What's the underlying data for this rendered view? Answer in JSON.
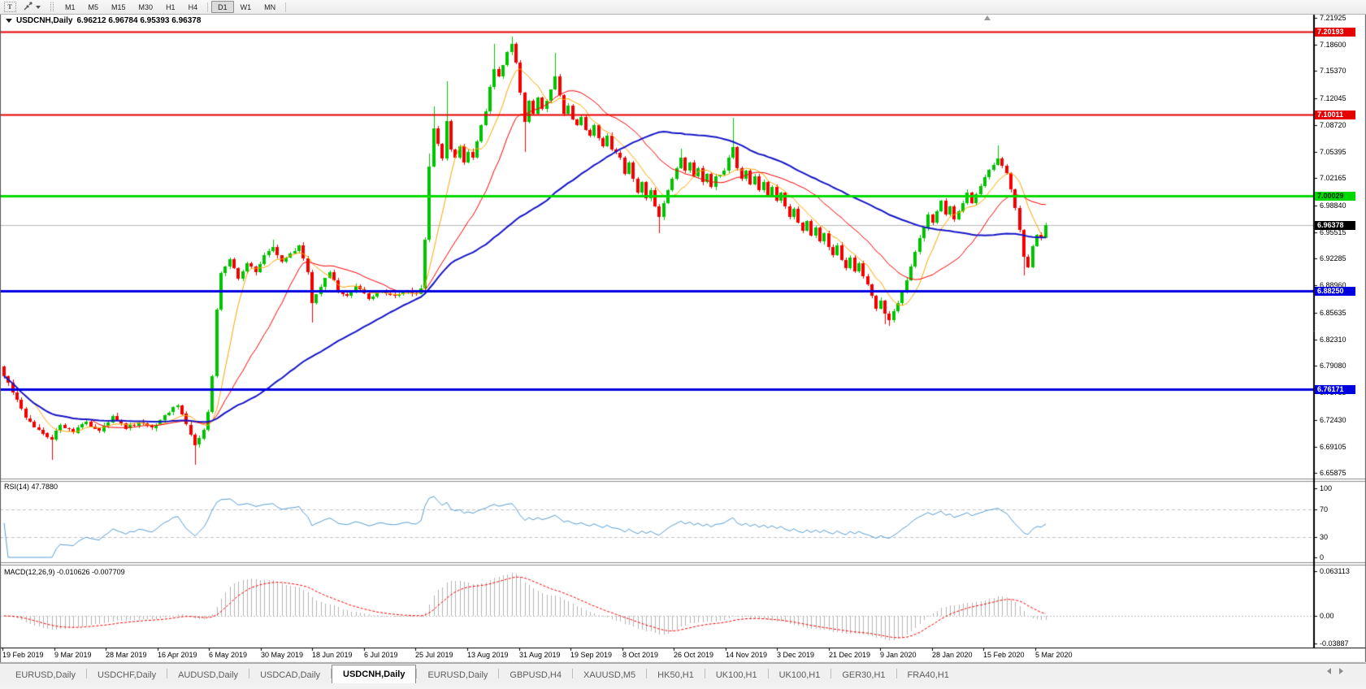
{
  "toolbar": {
    "text_tool_glyph": "T",
    "timeframes": [
      "M1",
      "M5",
      "M15",
      "M30",
      "H1",
      "H4",
      "D1",
      "W1",
      "MN"
    ],
    "active_timeframe": "D1"
  },
  "chart_header": {
    "symbol_title": "USDCNH,Daily",
    "ohlc_text": "6.96212 6.96784 6.95393 6.96378"
  },
  "price_axis": {
    "ticks": [
      "7.21925",
      "7.18600",
      "7.15370",
      "7.12045",
      "7.08720",
      "7.05395",
      "7.02165",
      "6.98840",
      "6.95515",
      "6.92285",
      "6.88960",
      "6.85635",
      "6.82310",
      "6.79080",
      "6.75755",
      "6.72430",
      "6.69105",
      "6.65875"
    ],
    "current_price_label": "6.96378"
  },
  "level_labels": [
    {
      "text": "7.20193",
      "bg": "#e60000",
      "fg": "#ffffff"
    },
    {
      "text": "7.10011",
      "bg": "#e60000",
      "fg": "#ffffff"
    },
    {
      "text": "7.00029",
      "bg": "#00d900",
      "fg": "#002900"
    },
    {
      "text": "6.88250",
      "bg": "#0000e0",
      "fg": "#ffffff"
    },
    {
      "text": "6.76171",
      "bg": "#0000e0",
      "fg": "#ffffff"
    }
  ],
  "rsi_panel": {
    "label": "RSI(14) 47.7880",
    "scale": [
      "100",
      "70",
      "30",
      "0"
    ]
  },
  "macd_panel": {
    "label": "MACD(12,26,9) -0.010626 -0.007709",
    "scale": [
      "0.063113",
      "0.00",
      "-0.03887"
    ]
  },
  "time_axis": [
    "19 Feb 2019",
    "9 Mar 2019",
    "28 Mar 2019",
    "16 Apr 2019",
    "6 May 2019",
    "30 May 2019",
    "18 Jun 2019",
    "6 Jul 2019",
    "25 Jul 2019",
    "13 Aug 2019",
    "31 Aug 2019",
    "19 Sep 2019",
    "8 Oct 2019",
    "26 Oct 2019",
    "14 Nov 2019",
    "3 Dec 2019",
    "21 Dec 2019",
    "9 Jan 2020",
    "28 Jan 2020",
    "15 Feb 2020",
    "5 Mar 2020"
  ],
  "tabs": {
    "items": [
      "EURUSD,Daily",
      "USDCHF,Daily",
      "AUDUSD,Daily",
      "USDCAD,Daily",
      "USDCNH,Daily",
      "EURUSD,Daily",
      "GBPUSD,H4",
      "XAUUSD,M5",
      "HK50,H1",
      "UK100,H1",
      "UK100,H1",
      "GER30,H1",
      "FRA40,H1"
    ],
    "active_index": 4
  },
  "chart_data": {
    "type": "candlestick",
    "symbol": "USDCNH",
    "timeframe": "Daily",
    "x_range": [
      "19 Feb 2019",
      "5 Mar 2020"
    ],
    "bar_count": 241,
    "current_bar": {
      "open": 6.96212,
      "high": 6.96784,
      "low": 6.95393,
      "close": 6.96378
    },
    "current_price": 6.96378,
    "price_at_top": 7.22325,
    "price_at_bottom": 6.65273,
    "colors": {
      "bull": "#00c400",
      "bear": "#f40000",
      "ma_fast": "#ffa500",
      "ma_mid": "#ff0000",
      "ma_slow": "#1616c8",
      "rsi_line": "#5a9fd6",
      "macd_hist": "#b4b4b4",
      "macd_signal": "#ff0000",
      "current_price_line": "#b8b8b8",
      "level_dash": "#c2c2c2"
    },
    "horizontal_lines": [
      {
        "price": 7.20193,
        "color": "#e60000",
        "width": 2
      },
      {
        "price": 7.10011,
        "color": "#e60000",
        "width": 2
      },
      {
        "price": 7.00029,
        "color": "#00d900",
        "width": 3
      },
      {
        "price": 6.8825,
        "color": "#0000e0",
        "width": 3
      },
      {
        "price": 6.76171,
        "color": "#0000e0",
        "width": 3
      }
    ],
    "moving_averages": [
      {
        "period": 8,
        "color": "#ffa500",
        "width": 1
      },
      {
        "period": 21,
        "color": "#ff0000",
        "width": 1
      },
      {
        "period": 55,
        "color": "#1616c8",
        "width": 2
      }
    ],
    "indicators": {
      "rsi": {
        "period": 14,
        "value": 47.788,
        "range": [
          0,
          100
        ],
        "levels": [
          70,
          30
        ]
      },
      "macd": {
        "fast": 12,
        "slow": 26,
        "signal": 9,
        "main_value": -0.010626,
        "signal_value": -0.007709,
        "scale_top": 0.063113,
        "scale_bottom": -0.03887
      }
    },
    "close_waypoints": [
      [
        0,
        6.778
      ],
      [
        2,
        6.758
      ],
      [
        5,
        6.726
      ],
      [
        8,
        6.712
      ],
      [
        11,
        6.7
      ],
      [
        13,
        6.718
      ],
      [
        16,
        6.708
      ],
      [
        19,
        6.722
      ],
      [
        22,
        6.71
      ],
      [
        25,
        6.729
      ],
      [
        28,
        6.713
      ],
      [
        31,
        6.721
      ],
      [
        34,
        6.714
      ],
      [
        37,
        6.73
      ],
      [
        40,
        6.742
      ],
      [
        42,
        6.718
      ],
      [
        44,
        6.693
      ],
      [
        46,
        6.712
      ],
      [
        47,
        6.734
      ],
      [
        48,
        6.778
      ],
      [
        49,
        6.86
      ],
      [
        50,
        6.905
      ],
      [
        52,
        6.922
      ],
      [
        54,
        6.898
      ],
      [
        56,
        6.917
      ],
      [
        58,
        6.906
      ],
      [
        60,
        6.927
      ],
      [
        62,
        6.937
      ],
      [
        64,
        6.919
      ],
      [
        66,
        6.929
      ],
      [
        68,
        6.939
      ],
      [
        70,
        6.906
      ],
      [
        71,
        6.868
      ],
      [
        73,
        6.888
      ],
      [
        75,
        6.906
      ],
      [
        77,
        6.883
      ],
      [
        79,
        6.877
      ],
      [
        81,
        6.889
      ],
      [
        84,
        6.873
      ],
      [
        87,
        6.883
      ],
      [
        90,
        6.877
      ],
      [
        93,
        6.883
      ],
      [
        95,
        6.879
      ],
      [
        96,
        6.886
      ],
      [
        97,
        6.946
      ],
      [
        98,
        7.036
      ],
      [
        99,
        7.083
      ],
      [
        100,
        7.064
      ],
      [
        101,
        7.046
      ],
      [
        102,
        7.092
      ],
      [
        103,
        7.057
      ],
      [
        104,
        7.047
      ],
      [
        105,
        7.061
      ],
      [
        106,
        7.041
      ],
      [
        107,
        7.054
      ],
      [
        108,
        7.047
      ],
      [
        109,
        7.067
      ],
      [
        110,
        7.087
      ],
      [
        111,
        7.104
      ],
      [
        112,
        7.134
      ],
      [
        113,
        7.156
      ],
      [
        114,
        7.147
      ],
      [
        115,
        7.161
      ],
      [
        116,
        7.177
      ],
      [
        117,
        7.187
      ],
      [
        118,
        7.164
      ],
      [
        119,
        7.127
      ],
      [
        120,
        7.091
      ],
      [
        121,
        7.117
      ],
      [
        122,
        7.101
      ],
      [
        123,
        7.121
      ],
      [
        124,
        7.107
      ],
      [
        125,
        7.117
      ],
      [
        126,
        7.131
      ],
      [
        127,
        7.147
      ],
      [
        128,
        7.124
      ],
      [
        129,
        7.101
      ],
      [
        130,
        7.111
      ],
      [
        131,
        7.094
      ],
      [
        132,
        7.087
      ],
      [
        133,
        7.097
      ],
      [
        134,
        7.081
      ],
      [
        135,
        7.074
      ],
      [
        136,
        7.087
      ],
      [
        137,
        7.071
      ],
      [
        138,
        7.061
      ],
      [
        139,
        7.074
      ],
      [
        140,
        7.057
      ],
      [
        142,
        7.047
      ],
      [
        143,
        7.027
      ],
      [
        144,
        7.041
      ],
      [
        145,
        7.021
      ],
      [
        146,
        7.004
      ],
      [
        147,
        7.017
      ],
      [
        148,
        6.997
      ],
      [
        149,
        7.007
      ],
      [
        150,
        6.987
      ],
      [
        151,
        6.974
      ],
      [
        152,
        6.991
      ],
      [
        153,
        7.007
      ],
      [
        154,
        7.021
      ],
      [
        155,
        7.034
      ],
      [
        156,
        7.047
      ],
      [
        157,
        7.031
      ],
      [
        158,
        7.041
      ],
      [
        159,
        7.024
      ],
      [
        160,
        7.034
      ],
      [
        161,
        7.017
      ],
      [
        162,
        7.027
      ],
      [
        163,
        7.011
      ],
      [
        164,
        7.024
      ],
      [
        166,
        7.031
      ],
      [
        168,
        7.06
      ],
      [
        169,
        7.034
      ],
      [
        170,
        7.021
      ],
      [
        171,
        7.031
      ],
      [
        172,
        7.014
      ],
      [
        173,
        7.024
      ],
      [
        174,
        7.007
      ],
      [
        175,
        7.017
      ],
      [
        176,
        7.001
      ],
      [
        177,
        7.011
      ],
      [
        178,
        6.994
      ],
      [
        179,
        7.004
      ],
      [
        180,
        6.987
      ],
      [
        181,
        6.974
      ],
      [
        182,
        6.984
      ],
      [
        183,
        6.967
      ],
      [
        184,
        6.957
      ],
      [
        185,
        6.969
      ],
      [
        186,
        6.951
      ],
      [
        187,
        6.961
      ],
      [
        188,
        6.944
      ],
      [
        189,
        6.954
      ],
      [
        190,
        6.937
      ],
      [
        191,
        6.927
      ],
      [
        192,
        6.939
      ],
      [
        193,
        6.921
      ],
      [
        194,
        6.911
      ],
      [
        195,
        6.924
      ],
      [
        196,
        6.907
      ],
      [
        197,
        6.917
      ],
      [
        198,
        6.901
      ],
      [
        199,
        6.891
      ],
      [
        200,
        6.877
      ],
      [
        201,
        6.861
      ],
      [
        202,
        6.871
      ],
      [
        203,
        6.855
      ],
      [
        204,
        6.847
      ],
      [
        205,
        6.858
      ],
      [
        206,
        6.868
      ],
      [
        207,
        6.882
      ],
      [
        208,
        6.896
      ],
      [
        209,
        6.913
      ],
      [
        210,
        6.931
      ],
      [
        211,
        6.948
      ],
      [
        212,
        6.961
      ],
      [
        213,
        6.977
      ],
      [
        214,
        6.967
      ],
      [
        215,
        6.981
      ],
      [
        216,
        6.994
      ],
      [
        217,
        6.977
      ],
      [
        218,
        6.987
      ],
      [
        219,
        6.971
      ],
      [
        220,
        6.981
      ],
      [
        221,
        6.991
      ],
      [
        222,
        7.004
      ],
      [
        223,
        6.991
      ],
      [
        224,
        7.002
      ],
      [
        225,
        7.012
      ],
      [
        227,
        7.032
      ],
      [
        229,
        7.046
      ],
      [
        231,
        7.028
      ],
      [
        232,
        7.008
      ],
      [
        233,
        6.985
      ],
      [
        234,
        6.958
      ],
      [
        235,
        6.925
      ],
      [
        236,
        6.912
      ],
      [
        237,
        6.938
      ],
      [
        238,
        6.952
      ],
      [
        239,
        6.948
      ],
      [
        240,
        6.9638
      ]
    ],
    "wick_spikes": [
      [
        11,
        null,
        6.674
      ],
      [
        44,
        null,
        6.669
      ],
      [
        62,
        6.9465,
        null
      ],
      [
        71,
        null,
        6.843
      ],
      [
        98,
        7.052,
        null
      ],
      [
        99,
        7.11,
        null
      ],
      [
        102,
        7.141,
        null
      ],
      [
        113,
        7.187,
        null
      ],
      [
        117,
        7.1966,
        null
      ],
      [
        120,
        null,
        7.054
      ],
      [
        127,
        7.176,
        null
      ],
      [
        151,
        null,
        6.954
      ],
      [
        156,
        7.058,
        null
      ],
      [
        168,
        7.096,
        null
      ],
      [
        203,
        null,
        6.842
      ],
      [
        204,
        null,
        6.84
      ],
      [
        229,
        7.062,
        null
      ],
      [
        235,
        null,
        6.902
      ]
    ]
  }
}
